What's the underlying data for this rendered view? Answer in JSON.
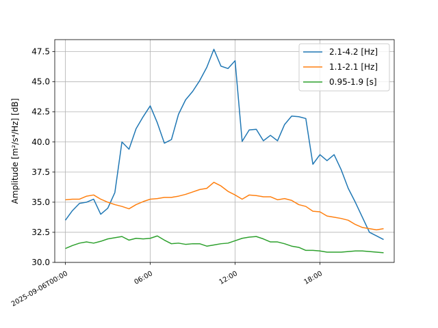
{
  "chart_data": {
    "type": "line",
    "title": "",
    "xlabel": "",
    "ylabel": "Amplitude [m²/s⁴/Hz] [dB]",
    "ylim": [
      30.0,
      48.5
    ],
    "xlim_hours": [
      -0.75,
      23.25
    ],
    "y_ticks": [
      30.0,
      32.5,
      35.0,
      37.5,
      40.0,
      42.5,
      45.0,
      47.5
    ],
    "y_tick_labels": [
      "30.0",
      "32.5",
      "35.0",
      "37.5",
      "40.0",
      "42.5",
      "45.0",
      "47.5"
    ],
    "x_ticks_hours": [
      0,
      6,
      12,
      18
    ],
    "x_tick_labels": [
      "2025-09-06T00:00",
      "06:00",
      "12:00",
      "18:00"
    ],
    "grid": true,
    "legend_position": "upper right",
    "x_hours": [
      0,
      0.5,
      1,
      1.5,
      2,
      2.5,
      3,
      3.5,
      4,
      4.5,
      5,
      5.5,
      6,
      6.5,
      7,
      7.5,
      8,
      8.5,
      9,
      9.5,
      10,
      10.5,
      11,
      11.5,
      12,
      12.5,
      13,
      13.5,
      14,
      14.5,
      15,
      15.5,
      16,
      16.5,
      17,
      17.5,
      18,
      18.5,
      19,
      19.5,
      20,
      20.5,
      21,
      21.5,
      22,
      22.5
    ],
    "series": [
      {
        "name": "2.1-4.2 [Hz]",
        "color": "#1f77b4",
        "values": [
          33.5,
          34.3,
          34.9,
          35.0,
          35.25,
          34.0,
          34.5,
          35.8,
          40.0,
          39.4,
          41.1,
          42.1,
          43.0,
          41.6,
          39.9,
          40.2,
          42.3,
          43.5,
          44.2,
          45.1,
          46.2,
          47.7,
          46.3,
          46.1,
          46.75,
          40.05,
          41.0,
          41.05,
          40.1,
          40.55,
          40.1,
          41.45,
          42.15,
          42.1,
          41.95,
          38.15,
          38.95,
          38.45,
          38.95,
          37.7,
          36.15,
          35.0,
          33.75,
          32.5,
          32.2,
          31.9
        ]
      },
      {
        "name": "1.1-2.1 [Hz]",
        "color": "#ff7f0e",
        "values": [
          35.2,
          35.25,
          35.25,
          35.5,
          35.6,
          35.25,
          35.0,
          34.8,
          34.65,
          34.45,
          34.8,
          35.05,
          35.25,
          35.3,
          35.4,
          35.4,
          35.5,
          35.65,
          35.85,
          36.05,
          36.15,
          36.65,
          36.35,
          35.9,
          35.6,
          35.25,
          35.6,
          35.55,
          35.45,
          35.45,
          35.2,
          35.3,
          35.15,
          34.8,
          34.65,
          34.25,
          34.2,
          33.85,
          33.75,
          33.65,
          33.5,
          33.15,
          32.9,
          32.8,
          32.7,
          32.8
        ]
      },
      {
        "name": "0.95-1.9 [s]",
        "color": "#2ca02c",
        "values": [
          31.15,
          31.4,
          31.6,
          31.7,
          31.6,
          31.75,
          31.95,
          32.05,
          32.15,
          31.85,
          32.0,
          31.95,
          32.0,
          32.2,
          31.85,
          31.55,
          31.6,
          31.5,
          31.55,
          31.55,
          31.35,
          31.45,
          31.55,
          31.6,
          31.8,
          32.0,
          32.1,
          32.15,
          31.95,
          31.7,
          31.7,
          31.55,
          31.35,
          31.25,
          31.0,
          31.0,
          30.95,
          30.85,
          30.85,
          30.85,
          30.9,
          30.95,
          30.95,
          30.9,
          30.85,
          30.8
        ]
      }
    ]
  }
}
